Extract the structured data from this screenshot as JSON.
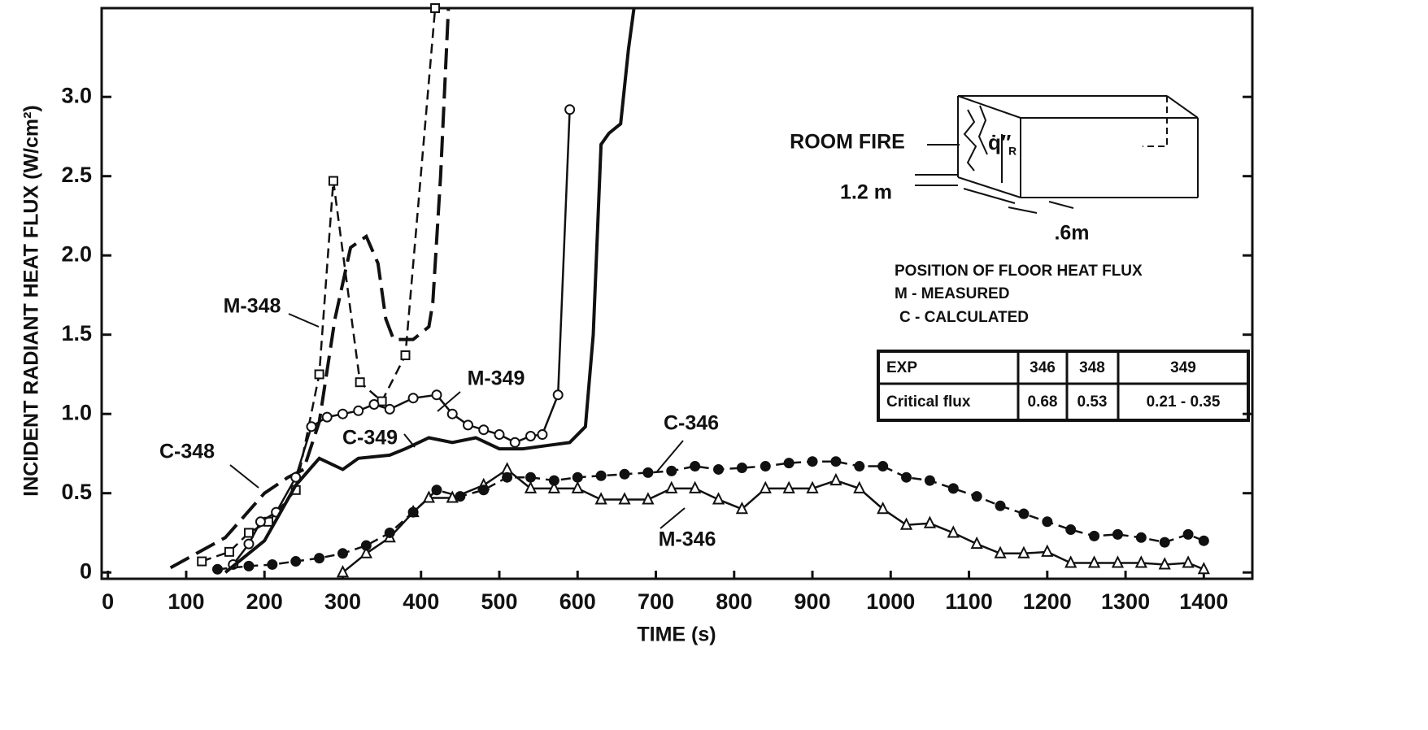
{
  "chart_data": {
    "type": "line",
    "x_label": "TIME (s)",
    "y_label": "INCIDENT RADIANT HEAT FLUX (W/cm²)",
    "xlim": [
      -8,
      1462
    ],
    "ylim": [
      -0.04,
      3.56
    ],
    "xticks": [
      0,
      100,
      200,
      300,
      400,
      500,
      600,
      700,
      800,
      900,
      1000,
      1100,
      1200,
      1300,
      1400
    ],
    "yticks": [
      0,
      0.5,
      {
        "value": 1,
        "label": "1.0"
      },
      1.5,
      {
        "value": 2,
        "label": "2.0"
      },
      2.5,
      {
        "value": 3,
        "label": "3.0"
      }
    ],
    "grid": false,
    "series": [
      {
        "name": "M-348",
        "color": "#111111",
        "line_style": "short-dash",
        "marker": "square",
        "x": [
          120,
          155,
          180,
          205,
          240,
          270,
          288,
          322,
          350,
          380,
          418
        ],
        "values": [
          0.07,
          0.13,
          0.25,
          0.32,
          0.52,
          1.25,
          2.47,
          1.2,
          1.08,
          1.37,
          3.56
        ]
      },
      {
        "name": "C-348",
        "color": "#111111",
        "line_style": "long-dash",
        "x": [
          80,
          150,
          200,
          230,
          250,
          270,
          290,
          310,
          330,
          345,
          355,
          365,
          390,
          410,
          415,
          425,
          435
        ],
        "values": [
          0.03,
          0.22,
          0.5,
          0.6,
          0.65,
          0.95,
          1.6,
          2.05,
          2.12,
          1.95,
          1.6,
          1.47,
          1.47,
          1.55,
          1.7,
          2.5,
          3.56
        ]
      },
      {
        "name": "M-349",
        "color": "#111111",
        "line_style": "solid",
        "marker": "circle",
        "x": [
          160,
          180,
          195,
          215,
          240,
          260,
          280,
          300,
          320,
          340,
          360,
          390,
          420,
          440,
          460,
          480,
          500,
          520,
          540,
          555,
          575,
          590
        ],
        "values": [
          0.05,
          0.18,
          0.32,
          0.38,
          0.6,
          0.92,
          0.98,
          1.0,
          1.02,
          1.06,
          1.03,
          1.1,
          1.12,
          1.0,
          0.93,
          0.9,
          0.87,
          0.82,
          0.86,
          0.87,
          1.12,
          2.92
        ]
      },
      {
        "name": "C-349",
        "color": "#111111",
        "line_style": "solid",
        "x": [
          150,
          200,
          240,
          270,
          300,
          320,
          360,
          380,
          410,
          440,
          470,
          500,
          530,
          560,
          590,
          610,
          620,
          630,
          640,
          655,
          665,
          672
        ],
        "values": [
          0.0,
          0.2,
          0.55,
          0.72,
          0.65,
          0.72,
          0.74,
          0.78,
          0.85,
          0.82,
          0.85,
          0.78,
          0.78,
          0.8,
          0.82,
          0.92,
          1.5,
          2.7,
          2.77,
          2.83,
          3.3,
          3.56
        ]
      },
      {
        "name": "M-346",
        "color": "#111111",
        "line_style": "solid",
        "marker": "triangle",
        "x": [
          300,
          330,
          360,
          390,
          410,
          440,
          480,
          510,
          540,
          570,
          600,
          630,
          660,
          690,
          720,
          750,
          780,
          810,
          840,
          870,
          900,
          930,
          960,
          990,
          1020,
          1050,
          1080,
          1110,
          1140,
          1170,
          1200,
          1230,
          1260,
          1290,
          1320,
          1350,
          1380,
          1400
        ],
        "values": [
          0.0,
          0.12,
          0.22,
          0.38,
          0.47,
          0.47,
          0.55,
          0.65,
          0.53,
          0.53,
          0.53,
          0.46,
          0.46,
          0.46,
          0.53,
          0.53,
          0.46,
          0.4,
          0.53,
          0.53,
          0.53,
          0.58,
          0.53,
          0.4,
          0.3,
          0.31,
          0.25,
          0.18,
          0.12,
          0.12,
          0.13,
          0.06,
          0.06,
          0.06,
          0.06,
          0.05,
          0.06,
          0.02
        ]
      },
      {
        "name": "C-346",
        "color": "#111111",
        "line_style": "short-dash",
        "marker": "filled-circle",
        "x": [
          140,
          180,
          210,
          240,
          270,
          300,
          330,
          360,
          390,
          420,
          450,
          480,
          510,
          540,
          570,
          600,
          630,
          660,
          690,
          720,
          750,
          780,
          810,
          840,
          870,
          900,
          930,
          960,
          990,
          1020,
          1050,
          1080,
          1110,
          1140,
          1170,
          1200,
          1230,
          1260,
          1290,
          1320,
          1350,
          1380,
          1400
        ],
        "values": [
          0.02,
          0.04,
          0.05,
          0.07,
          0.09,
          0.12,
          0.17,
          0.25,
          0.38,
          0.52,
          0.48,
          0.52,
          0.6,
          0.6,
          0.58,
          0.6,
          0.61,
          0.62,
          0.63,
          0.64,
          0.67,
          0.65,
          0.66,
          0.67,
          0.69,
          0.7,
          0.7,
          0.67,
          0.67,
          0.6,
          0.58,
          0.53,
          0.48,
          0.42,
          0.37,
          0.32,
          0.27,
          0.23,
          0.24,
          0.22,
          0.19,
          0.24,
          0.2
        ]
      }
    ],
    "diagram": {
      "fire_label": "ROOM FIRE",
      "flux_symbol": "q̇″",
      "flux_subscript": "R",
      "height_label": "1.2 m",
      "offset_label": ".6m"
    },
    "notes": [
      "POSITION OF FLOOR HEAT FLUX",
      "M - MEASURED",
      "C - CALCULATED"
    ],
    "table": {
      "rows": [
        [
          "EXP",
          "346",
          "348",
          "349"
        ],
        [
          "Critical flux",
          "0.68",
          "0.53",
          "0.21 - 0.35"
        ]
      ]
    }
  }
}
